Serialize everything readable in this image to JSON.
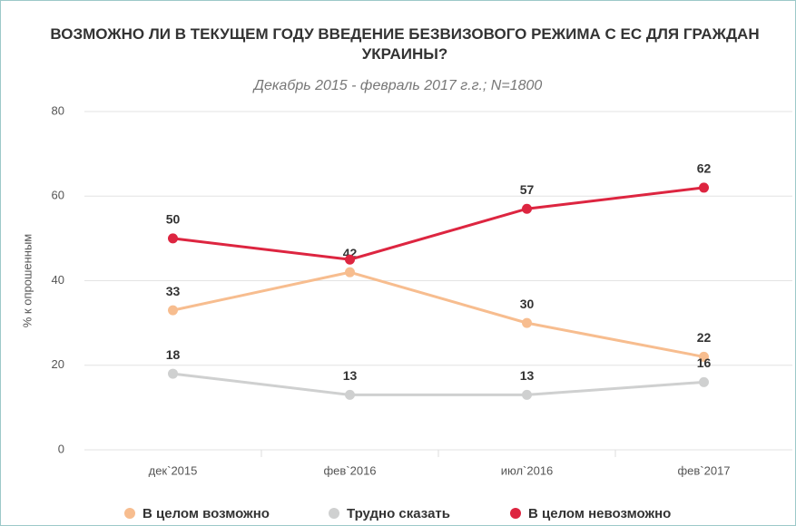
{
  "chart_data": {
    "type": "line",
    "title": "ВОЗМОЖНО ЛИ В ТЕКУЩЕМ ГОДУ ВВЕДЕНИЕ БЕЗВИЗОВОГО РЕЖИМА С ЕС ДЛЯ ГРАЖДАН УКРАИНЫ?",
    "subtitle": "Декабрь 2015 - февраль 2017 г.г.; N=1800",
    "y_label": "% к опрошенным",
    "categories": [
      "дек`2015",
      "фев`2016",
      "июл`2016",
      "фев`2017"
    ],
    "series": [
      {
        "name": "В целом возможно",
        "color": "#f7bd8f",
        "values": [
          33,
          42,
          30,
          22
        ]
      },
      {
        "name": "Трудно сказать",
        "color": "#cfd0d0",
        "values": [
          18,
          13,
          13,
          16
        ]
      },
      {
        "name": "В целом невозможно",
        "color": "#dd2540",
        "values": [
          50,
          45,
          57,
          62
        ],
        "value_labels": [
          "50",
          null,
          "57",
          "62"
        ]
      }
    ],
    "ylim": [
      0,
      80
    ],
    "yticks": [
      0,
      20,
      40,
      60,
      80
    ],
    "grid": true,
    "legend": "bottom"
  }
}
